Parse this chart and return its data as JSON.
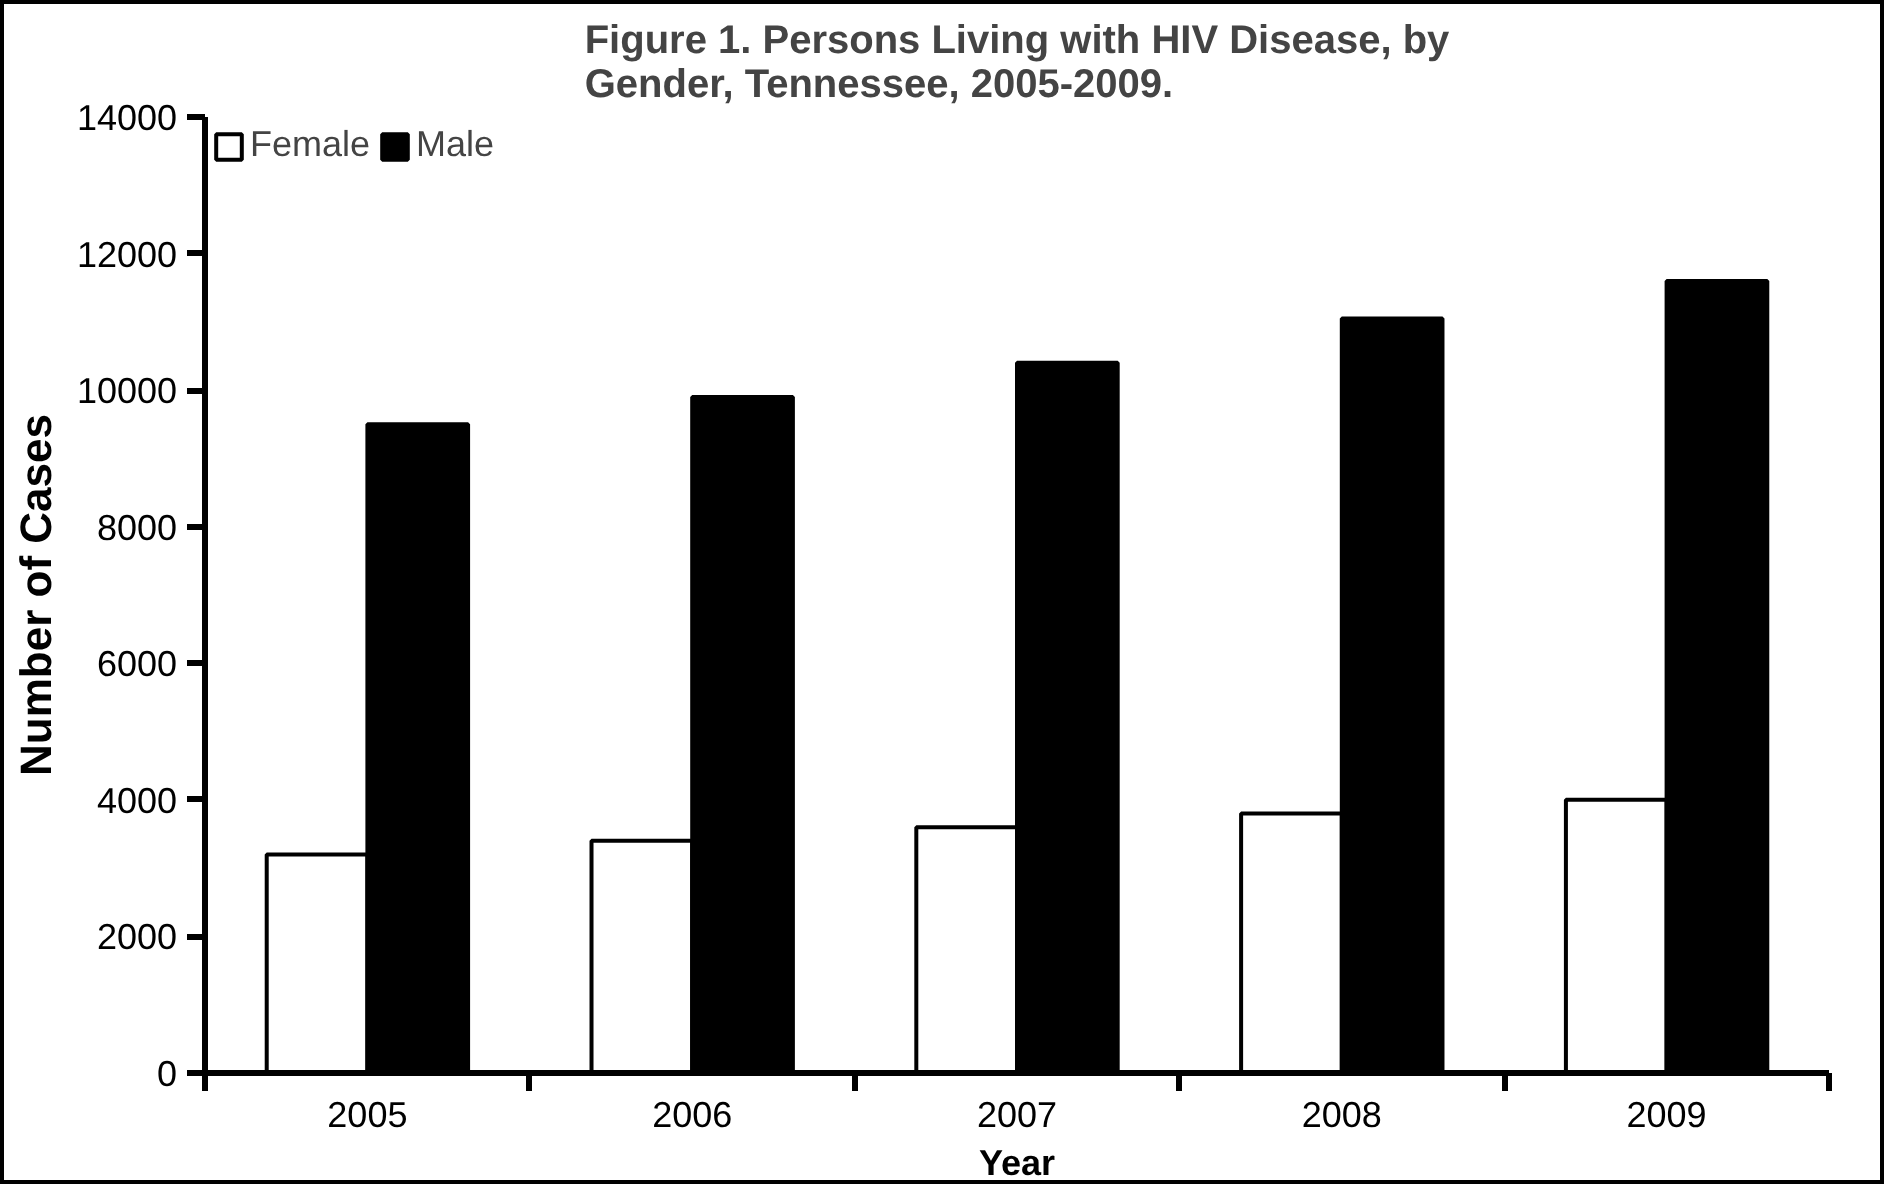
{
  "chart_data": {
    "type": "bar",
    "title": "Figure 1. Persons Living with HIV Disease, by\nGender, Tennessee, 2005-2009.",
    "xlabel": "Year",
    "ylabel": "Number of Cases",
    "categories": [
      "2005",
      "2006",
      "2007",
      "2008",
      "2009"
    ],
    "series": [
      {
        "name": "Female",
        "color": "#ffffff",
        "values": [
          3200,
          3400,
          3600,
          3800,
          4000
        ]
      },
      {
        "name": "Male",
        "color": "#000000",
        "values": [
          9500,
          9900,
          10400,
          11050,
          11600
        ]
      }
    ],
    "ylim": [
      0,
      14000
    ],
    "yticks": [
      0,
      2000,
      4000,
      6000,
      8000,
      10000,
      12000,
      14000
    ],
    "grid": false,
    "legend": "top left"
  }
}
